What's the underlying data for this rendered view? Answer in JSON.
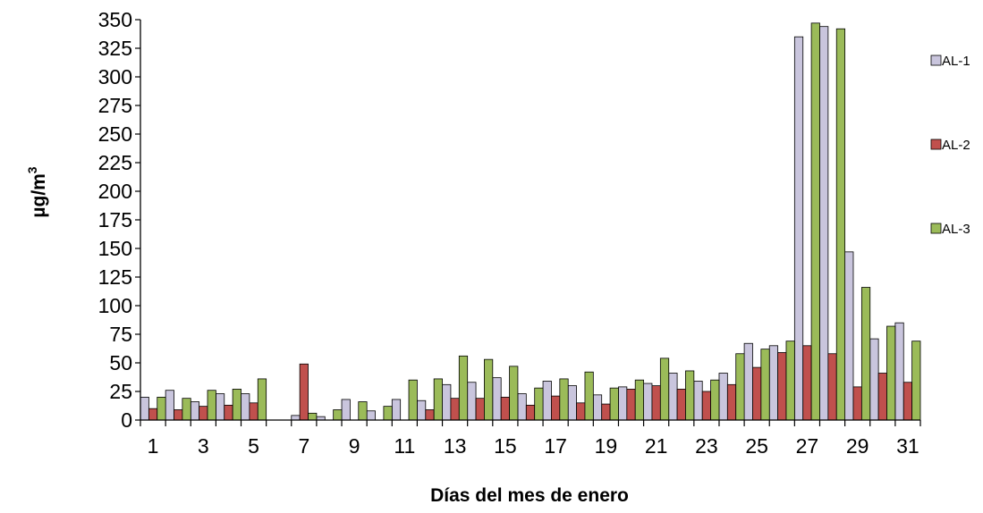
{
  "chart_data": {
    "type": "bar",
    "xlabel": "Días del mes de enero",
    "ylabel": "µg/m",
    "ylabel_sup": "3",
    "ylim": [
      0,
      350
    ],
    "yticks": [
      0,
      25,
      50,
      75,
      100,
      125,
      150,
      175,
      200,
      225,
      250,
      275,
      300,
      325,
      350
    ],
    "categories": [
      1,
      2,
      3,
      4,
      5,
      6,
      7,
      8,
      9,
      10,
      11,
      12,
      13,
      14,
      15,
      16,
      17,
      18,
      19,
      20,
      21,
      22,
      23,
      24,
      25,
      26,
      27,
      28,
      29,
      30,
      31
    ],
    "xtick_labels": [
      "1",
      "",
      "3",
      "",
      "5",
      "",
      "7",
      "",
      "9",
      "",
      "11",
      "",
      "13",
      "",
      "15",
      "",
      "17",
      "",
      "19",
      "",
      "21",
      "",
      "23",
      "",
      "25",
      "",
      "27",
      "",
      "29",
      "",
      "31"
    ],
    "legend_position": "right",
    "series": [
      {
        "name": "AL-1",
        "color": "#c9c5dd",
        "values": [
          20,
          26,
          16,
          23,
          23,
          null,
          4,
          3,
          18,
          8,
          18,
          17,
          31,
          33,
          37,
          23,
          34,
          30,
          22,
          29,
          32,
          41,
          34,
          41,
          67,
          65,
          335,
          344,
          147,
          71,
          85
        ]
      },
      {
        "name": "AL-2",
        "color": "#c0504d",
        "values": [
          10,
          9,
          12,
          13,
          15,
          null,
          49,
          null,
          null,
          null,
          null,
          9,
          19,
          19,
          20,
          13,
          21,
          15,
          14,
          27,
          30,
          27,
          25,
          31,
          46,
          59,
          65,
          58,
          29,
          41,
          33
        ]
      },
      {
        "name": "AL-3",
        "color": "#9bbb59",
        "values": [
          20,
          19,
          26,
          27,
          36,
          null,
          6,
          9,
          16,
          12,
          35,
          36,
          56,
          53,
          47,
          28,
          36,
          42,
          28,
          35,
          54,
          43,
          35,
          58,
          62,
          69,
          347,
          342,
          116,
          82,
          69
        ]
      }
    ]
  }
}
